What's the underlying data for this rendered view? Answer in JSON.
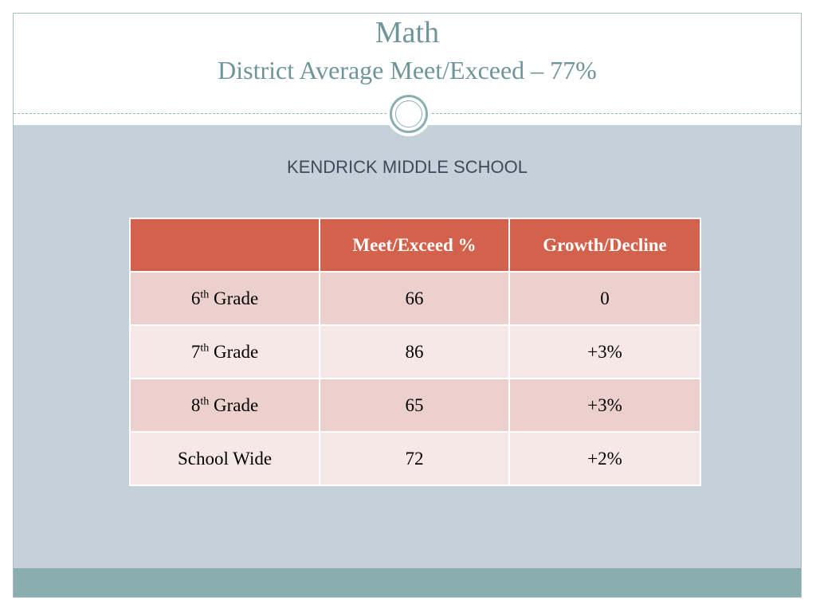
{
  "slide": {
    "title": "Math",
    "subtitle": "District Average Meet/Exceed – 77%",
    "heading": "KENDRICK MIDDLE SCHOOL"
  },
  "table": {
    "headers": [
      "",
      "Meet/Exceed %",
      "Growth/Decline"
    ],
    "rows": [
      {
        "grade_num": "6",
        "grade_sup": "th",
        "grade_word": "Grade",
        "meet": "66",
        "growth": "0"
      },
      {
        "grade_num": "7",
        "grade_sup": "th",
        "grade_word": "Grade",
        "meet": "86",
        "growth": "+3%"
      },
      {
        "grade_num": "8",
        "grade_sup": "th",
        "grade_word": "Grade",
        "meet": "65",
        "growth": "+3%"
      },
      {
        "label": "School Wide",
        "meet": "72",
        "growth": "+2%"
      }
    ]
  },
  "colors": {
    "title": "#6f9599",
    "header_bg": "#d2624b",
    "row_odd": "#ecd0cd",
    "row_even": "#f6e8e6",
    "body_bg": "#c5d1d8",
    "footer_bar": "#8aadaf"
  },
  "icons": {
    "divider_ornament": "double-ring-icon"
  }
}
